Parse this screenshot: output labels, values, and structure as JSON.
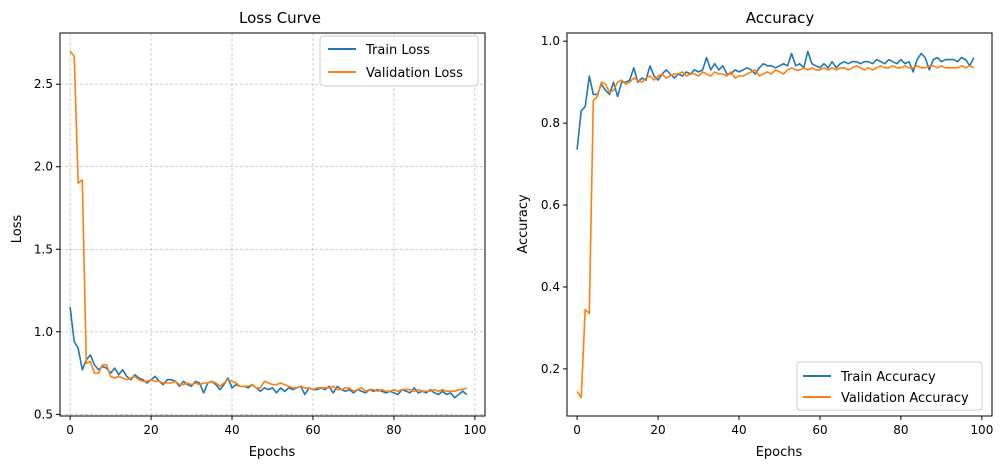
{
  "chart_data": [
    {
      "type": "line",
      "title": "Loss Curve",
      "xlabel": "Epochs",
      "ylabel": "Loss",
      "xlim": [
        -2.5,
        102.5
      ],
      "ylim": [
        0.49,
        2.81
      ],
      "xticks": [
        0,
        20,
        40,
        60,
        80,
        100
      ],
      "yticks": [
        0.5,
        1.0,
        1.5,
        2.0,
        2.5
      ],
      "ytick_labels": [
        "0.5",
        "1.0",
        "1.5",
        "2.0",
        "2.5"
      ],
      "grid": true,
      "legend": "top-right",
      "series": [
        {
          "name": "Train Loss",
          "color": "#1f77b4",
          "x": [
            0,
            1,
            2,
            3,
            4,
            5,
            6,
            7,
            8,
            9,
            10,
            11,
            12,
            13,
            14,
            15,
            16,
            17,
            18,
            19,
            20,
            21,
            22,
            23,
            24,
            25,
            26,
            27,
            28,
            29,
            30,
            31,
            32,
            33,
            34,
            35,
            36,
            37,
            38,
            39,
            40,
            41,
            42,
            43,
            44,
            45,
            46,
            47,
            48,
            49,
            50,
            51,
            52,
            53,
            54,
            55,
            56,
            57,
            58,
            59,
            60,
            61,
            62,
            63,
            64,
            65,
            66,
            67,
            68,
            69,
            70,
            71,
            72,
            73,
            74,
            75,
            76,
            77,
            78,
            79,
            80,
            81,
            82,
            83,
            84,
            85,
            86,
            87,
            88,
            89,
            90,
            91,
            92,
            93,
            94,
            95,
            96,
            97,
            98
          ],
          "values": [
            1.15,
            0.94,
            0.9,
            0.77,
            0.83,
            0.86,
            0.8,
            0.77,
            0.79,
            0.78,
            0.75,
            0.78,
            0.74,
            0.77,
            0.73,
            0.71,
            0.74,
            0.72,
            0.71,
            0.69,
            0.71,
            0.73,
            0.7,
            0.68,
            0.71,
            0.71,
            0.7,
            0.67,
            0.7,
            0.68,
            0.67,
            0.7,
            0.69,
            0.63,
            0.69,
            0.7,
            0.68,
            0.65,
            0.68,
            0.72,
            0.66,
            0.68,
            0.67,
            0.67,
            0.66,
            0.68,
            0.66,
            0.64,
            0.66,
            0.65,
            0.66,
            0.63,
            0.66,
            0.64,
            0.66,
            0.65,
            0.66,
            0.67,
            0.62,
            0.66,
            0.65,
            0.65,
            0.66,
            0.65,
            0.67,
            0.63,
            0.67,
            0.65,
            0.64,
            0.65,
            0.63,
            0.65,
            0.64,
            0.63,
            0.65,
            0.64,
            0.65,
            0.64,
            0.63,
            0.64,
            0.63,
            0.62,
            0.65,
            0.64,
            0.63,
            0.66,
            0.63,
            0.64,
            0.63,
            0.65,
            0.63,
            0.62,
            0.64,
            0.62,
            0.63,
            0.6,
            0.62,
            0.64,
            0.62
          ]
        },
        {
          "name": "Validation Loss",
          "color": "#ff7f0e",
          "x": [
            0,
            1,
            2,
            3,
            4,
            5,
            6,
            7,
            8,
            9,
            10,
            11,
            12,
            13,
            14,
            15,
            16,
            17,
            18,
            19,
            20,
            21,
            22,
            23,
            24,
            25,
            26,
            27,
            28,
            29,
            30,
            31,
            32,
            33,
            34,
            35,
            36,
            37,
            38,
            39,
            40,
            41,
            42,
            43,
            44,
            45,
            46,
            47,
            48,
            49,
            50,
            51,
            52,
            53,
            54,
            55,
            56,
            57,
            58,
            59,
            60,
            61,
            62,
            63,
            64,
            65,
            66,
            67,
            68,
            69,
            70,
            71,
            72,
            73,
            74,
            75,
            76,
            77,
            78,
            79,
            80,
            81,
            82,
            83,
            84,
            85,
            86,
            87,
            88,
            89,
            90,
            91,
            92,
            93,
            94,
            95,
            96,
            97,
            98
          ],
          "values": [
            2.7,
            2.67,
            1.9,
            1.92,
            0.81,
            0.82,
            0.75,
            0.75,
            0.8,
            0.8,
            0.73,
            0.72,
            0.73,
            0.72,
            0.71,
            0.72,
            0.73,
            0.71,
            0.7,
            0.7,
            0.71,
            0.7,
            0.7,
            0.69,
            0.69,
            0.69,
            0.7,
            0.68,
            0.68,
            0.69,
            0.68,
            0.69,
            0.68,
            0.69,
            0.69,
            0.7,
            0.69,
            0.67,
            0.69,
            0.71,
            0.7,
            0.69,
            0.67,
            0.67,
            0.67,
            0.68,
            0.66,
            0.66,
            0.7,
            0.69,
            0.68,
            0.68,
            0.69,
            0.68,
            0.67,
            0.66,
            0.66,
            0.67,
            0.66,
            0.66,
            0.65,
            0.66,
            0.66,
            0.66,
            0.66,
            0.67,
            0.65,
            0.65,
            0.66,
            0.66,
            0.64,
            0.65,
            0.66,
            0.64,
            0.65,
            0.65,
            0.64,
            0.65,
            0.64,
            0.64,
            0.65,
            0.64,
            0.65,
            0.65,
            0.65,
            0.64,
            0.65,
            0.64,
            0.64,
            0.64,
            0.65,
            0.64,
            0.65,
            0.64,
            0.64,
            0.64,
            0.65,
            0.65,
            0.66
          ]
        }
      ]
    },
    {
      "type": "line",
      "title": "Accuracy",
      "xlabel": "Epochs",
      "ylabel": "Accuracy",
      "xlim": [
        -2.5,
        102.5
      ],
      "ylim": [
        0.085,
        1.02
      ],
      "xticks": [
        0,
        20,
        40,
        60,
        80,
        100
      ],
      "yticks": [
        0.2,
        0.4,
        0.6,
        0.8,
        1.0
      ],
      "ytick_labels": [
        "0.2",
        "0.4",
        "0.6",
        "0.8",
        "1.0"
      ],
      "grid": false,
      "legend": "bottom-right",
      "series": [
        {
          "name": "Train Accuracy",
          "color": "#1f77b4",
          "x": [
            0,
            1,
            2,
            3,
            4,
            5,
            6,
            7,
            8,
            9,
            10,
            11,
            12,
            13,
            14,
            15,
            16,
            17,
            18,
            19,
            20,
            21,
            22,
            23,
            24,
            25,
            26,
            27,
            28,
            29,
            30,
            31,
            32,
            33,
            34,
            35,
            36,
            37,
            38,
            39,
            40,
            41,
            42,
            43,
            44,
            45,
            46,
            47,
            48,
            49,
            50,
            51,
            52,
            53,
            54,
            55,
            56,
            57,
            58,
            59,
            60,
            61,
            62,
            63,
            64,
            65,
            66,
            67,
            68,
            69,
            70,
            71,
            72,
            73,
            74,
            75,
            76,
            77,
            78,
            79,
            80,
            81,
            82,
            83,
            84,
            85,
            86,
            87,
            88,
            89,
            90,
            91,
            92,
            93,
            94,
            95,
            96,
            97,
            98
          ],
          "values": [
            0.735,
            0.83,
            0.84,
            0.915,
            0.87,
            0.87,
            0.895,
            0.88,
            0.87,
            0.9,
            0.865,
            0.9,
            0.9,
            0.905,
            0.935,
            0.9,
            0.91,
            0.905,
            0.94,
            0.915,
            0.905,
            0.92,
            0.93,
            0.92,
            0.91,
            0.92,
            0.915,
            0.925,
            0.92,
            0.93,
            0.925,
            0.93,
            0.96,
            0.93,
            0.945,
            0.93,
            0.94,
            0.92,
            0.92,
            0.93,
            0.925,
            0.93,
            0.935,
            0.93,
            0.92,
            0.935,
            0.945,
            0.94,
            0.94,
            0.935,
            0.94,
            0.945,
            0.94,
            0.97,
            0.94,
            0.945,
            0.935,
            0.975,
            0.945,
            0.94,
            0.935,
            0.945,
            0.935,
            0.95,
            0.935,
            0.945,
            0.95,
            0.945,
            0.95,
            0.95,
            0.945,
            0.95,
            0.95,
            0.945,
            0.955,
            0.95,
            0.945,
            0.955,
            0.95,
            0.945,
            0.955,
            0.945,
            0.95,
            0.925,
            0.955,
            0.97,
            0.96,
            0.93,
            0.955,
            0.96,
            0.95,
            0.955,
            0.955,
            0.955,
            0.95,
            0.96,
            0.955,
            0.94,
            0.96
          ]
        },
        {
          "name": "Validation Accuracy",
          "color": "#ff7f0e",
          "x": [
            0,
            1,
            2,
            3,
            4,
            5,
            6,
            7,
            8,
            9,
            10,
            11,
            12,
            13,
            14,
            15,
            16,
            17,
            18,
            19,
            20,
            21,
            22,
            23,
            24,
            25,
            26,
            27,
            28,
            29,
            30,
            31,
            32,
            33,
            34,
            35,
            36,
            37,
            38,
            39,
            40,
            41,
            42,
            43,
            44,
            45,
            46,
            47,
            48,
            49,
            50,
            51,
            52,
            53,
            54,
            55,
            56,
            57,
            58,
            59,
            60,
            61,
            62,
            63,
            64,
            65,
            66,
            67,
            68,
            69,
            70,
            71,
            72,
            73,
            74,
            75,
            76,
            77,
            78,
            79,
            80,
            81,
            82,
            83,
            84,
            85,
            86,
            87,
            88,
            89,
            90,
            91,
            92,
            93,
            94,
            95,
            96,
            97,
            98
          ],
          "values": [
            0.145,
            0.13,
            0.345,
            0.335,
            0.855,
            0.865,
            0.9,
            0.895,
            0.875,
            0.88,
            0.9,
            0.905,
            0.895,
            0.9,
            0.91,
            0.905,
            0.9,
            0.91,
            0.915,
            0.905,
            0.915,
            0.92,
            0.91,
            0.915,
            0.92,
            0.92,
            0.925,
            0.915,
            0.92,
            0.92,
            0.915,
            0.925,
            0.92,
            0.915,
            0.925,
            0.92,
            0.92,
            0.915,
            0.925,
            0.91,
            0.915,
            0.915,
            0.92,
            0.925,
            0.93,
            0.915,
            0.92,
            0.925,
            0.92,
            0.93,
            0.925,
            0.92,
            0.93,
            0.935,
            0.93,
            0.93,
            0.935,
            0.93,
            0.935,
            0.93,
            0.93,
            0.935,
            0.93,
            0.935,
            0.93,
            0.935,
            0.935,
            0.93,
            0.935,
            0.94,
            0.935,
            0.93,
            0.935,
            0.93,
            0.935,
            0.94,
            0.935,
            0.935,
            0.94,
            0.935,
            0.935,
            0.94,
            0.935,
            0.935,
            0.94,
            0.935,
            0.935,
            0.94,
            0.94,
            0.935,
            0.94,
            0.935,
            0.935,
            0.935,
            0.935,
            0.94,
            0.935,
            0.94,
            0.935
          ]
        }
      ]
    }
  ]
}
